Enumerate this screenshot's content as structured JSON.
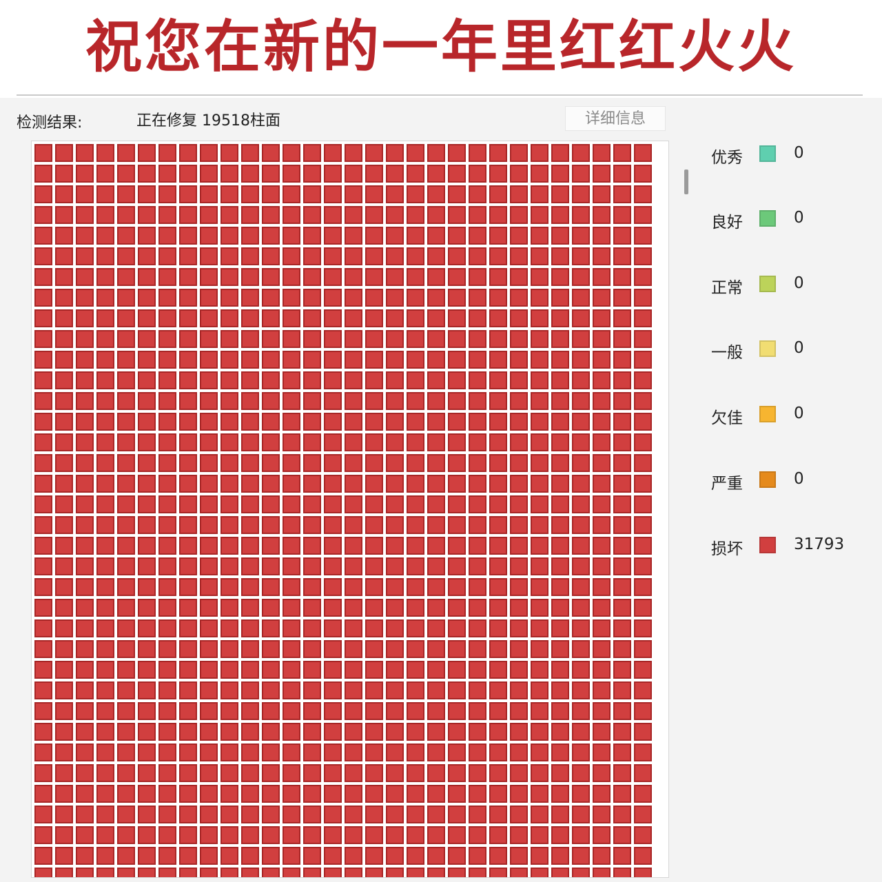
{
  "banner": {
    "text": "祝您在新的一年里红红火火",
    "color": "#b8262a"
  },
  "header": {
    "result_label": "检测结果:",
    "status_text": "正在修复 19518柱面",
    "detail_button_label": "详细信息"
  },
  "grid": {
    "cell_color": "#d13f3f",
    "cell_border_color": "#a82626"
  },
  "legend": [
    {
      "label": "优秀",
      "color": "#5fcfaf",
      "count": "0"
    },
    {
      "label": "良好",
      "color": "#6cc97a",
      "count": "0"
    },
    {
      "label": "正常",
      "color": "#bcd35a",
      "count": "0"
    },
    {
      "label": "一般",
      "color": "#f1dd72",
      "count": "0"
    },
    {
      "label": "欠佳",
      "color": "#f7b530",
      "count": "0"
    },
    {
      "label": "严重",
      "color": "#e58a1c",
      "count": "0"
    },
    {
      "label": "损坏",
      "color": "#d13f3f",
      "count": "31793"
    }
  ]
}
